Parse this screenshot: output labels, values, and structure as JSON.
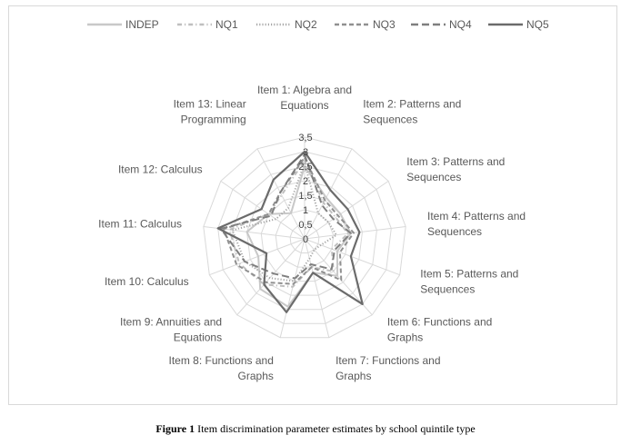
{
  "caption": {
    "label": "Figure 1",
    "text": "Item discrimination parameter estimates by school quintile type"
  },
  "chart_data": {
    "type": "radar",
    "categories": [
      "Item 1: Algebra and Equations",
      "Item 2: Patterns and Sequences",
      "Item 3: Patterns and Sequences",
      "Item 4: Patterns and Sequences",
      "Item 5: Patterns and Sequences",
      "Item 6: Functions and Graphs",
      "Item 7: Functions and Graphs",
      "Item 8: Functions and Graphs",
      "Item 9: Annuities and Equations",
      "Item 10: Calculus",
      "Item 11: Calculus",
      "Item 12: Calculus",
      "Item 13: Linear Programming"
    ],
    "category_lines": [
      [
        "Item 1: Algebra and",
        "Equations"
      ],
      [
        "Item 2: Patterns and",
        "Sequences"
      ],
      [
        "Item 3: Patterns and",
        "Sequences"
      ],
      [
        "Item 4: Patterns and",
        "Sequences"
      ],
      [
        "Item 5: Patterns and",
        "Sequences"
      ],
      [
        "Item 6: Functions and",
        "Graphs"
      ],
      [
        "Item 7: Functions and",
        "Graphs"
      ],
      [
        "Item 8: Functions and",
        "Graphs"
      ],
      [
        "Item 9: Annuities and",
        "Equations"
      ],
      [
        "Item 10: Calculus"
      ],
      [
        "Item 11: Calculus"
      ],
      [
        "Item 12: Calculus"
      ],
      [
        "Item 13: Linear",
        "Programming"
      ]
    ],
    "rlim": [
      0,
      3.5
    ],
    "ticks": [
      "0",
      "0,5",
      "1",
      "1,5",
      "2",
      "2,5",
      "3",
      "3,5"
    ],
    "tick_values": [
      0,
      0.5,
      1,
      1.5,
      2,
      2.5,
      3,
      3.5
    ],
    "grid": true,
    "legend_position": "top",
    "series": [
      {
        "name": "INDEP",
        "color": "#c8c8c8",
        "dash": "solid",
        "values": [
          2.5,
          1.6,
          1.5,
          1.6,
          1.2,
          1.7,
          1.2,
          2.4,
          2.3,
          1.7,
          2.0,
          1.5,
          1.0
        ]
      },
      {
        "name": "NQ1",
        "color": "#bfbfbf",
        "dash": "dash-dot",
        "values": [
          2.7,
          1.4,
          1.3,
          1.5,
          1.0,
          1.5,
          1.0,
          1.7,
          2.1,
          2.4,
          2.6,
          1.5,
          1.7
        ]
      },
      {
        "name": "NQ2",
        "color": "#a6a6a6",
        "dash": "dot",
        "values": [
          2.6,
          1.0,
          1.0,
          1.1,
          0.6,
          0.5,
          0.7,
          1.5,
          1.8,
          2.2,
          2.5,
          1.2,
          1.2
        ]
      },
      {
        "name": "NQ3",
        "color": "#909090",
        "dash": "dash",
        "values": [
          2.8,
          1.5,
          1.4,
          1.7,
          1.3,
          1.9,
          1.0,
          1.6,
          2.0,
          2.5,
          2.8,
          1.5,
          1.8
        ]
      },
      {
        "name": "NQ4",
        "color": "#7f7f7f",
        "dash": "long-dash",
        "values": [
          2.9,
          1.3,
          1.2,
          1.6,
          1.1,
          1.4,
          0.9,
          1.4,
          1.6,
          2.2,
          2.9,
          1.4,
          1.8
        ]
      },
      {
        "name": "NQ5",
        "color": "#6b6b6b",
        "dash": "solid",
        "values": [
          3.0,
          1.9,
          1.8,
          1.9,
          1.7,
          3.0,
          1.2,
          2.6,
          2.1,
          1.4,
          3.0,
          1.8,
          2.3
        ]
      }
    ]
  }
}
